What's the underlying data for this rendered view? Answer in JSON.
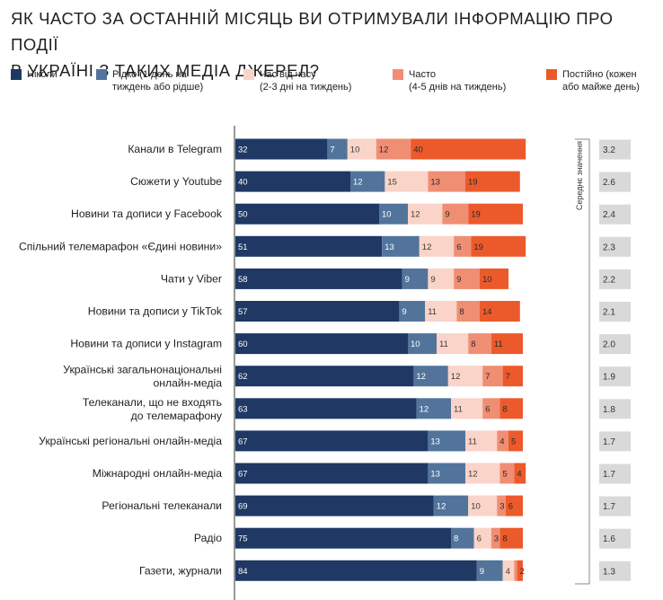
{
  "title": {
    "line1": "ЯК ЧАСТО ЗА ОСТАННІЙ МІСЯЦЬ ВИ ОТРИМУВАЛИ ІНФОРМАЦІЮ ПРО ПОДІЇ",
    "line2": "В УКРАЇНІ З ТАКИХ МЕДІА ДЖЕРЕЛ?"
  },
  "legend": [
    {
      "line1": "Ніколи",
      "line2": "",
      "color": "#1f3864"
    },
    {
      "line1": "Рідко (1 день на",
      "line2": "тиждень або рідше)",
      "color": "#52749b"
    },
    {
      "line1": "Час від часу",
      "line2": "(2-3 дні на тиждень)",
      "color": "#fad4c8"
    },
    {
      "line1": "Часто",
      "line2": "(4-5 днів на тиждень)",
      "color": "#f08e73"
    },
    {
      "line1": "Постійно (кожен",
      "line2": "або майже день)",
      "color": "#ec5a2b"
    }
  ],
  "chart_data": {
    "type": "bar",
    "orientation": "horizontal",
    "stacked": true,
    "title": "ЯК ЧАСТО ЗА ОСТАННІЙ МІСЯЦЬ ВИ ОТРИМУВАЛИ ІНФОРМАЦІЮ ПРО ПОДІЇ В УКРАЇНІ З ТАКИХ МЕДІА ДЖЕРЕЛ?",
    "xlim": [
      0,
      100
    ],
    "categories": [
      [
        "Канали в Telegram"
      ],
      [
        "Сюжети у Youtube"
      ],
      [
        "Новини та дописи у Facebook"
      ],
      [
        "Спільний телемарафон «Єдині новини»"
      ],
      [
        "Чати у Viber"
      ],
      [
        "Новини та дописи у TikTok"
      ],
      [
        "Новини та дописи у Instagram"
      ],
      [
        "Українські загальнонаціональні",
        "онлайн-медіа"
      ],
      [
        "Телеканали, що не входять",
        "до телемарафону"
      ],
      [
        "Українські регіональні онлайн-медіа"
      ],
      [
        "Міжнародні онлайн-медіа"
      ],
      [
        "Регіональні телеканали"
      ],
      [
        "Радіо"
      ],
      [
        "Газети, журнали"
      ]
    ],
    "series": [
      {
        "name": "Ніколи",
        "color": "#1f3864",
        "values": [
          32,
          40,
          50,
          51,
          58,
          57,
          60,
          62,
          63,
          67,
          67,
          69,
          75,
          84
        ]
      },
      {
        "name": "Рідко (1 день на тиждень або рідше)",
        "color": "#52749b",
        "values": [
          7,
          12,
          10,
          13,
          9,
          9,
          10,
          12,
          12,
          13,
          13,
          12,
          8,
          9
        ]
      },
      {
        "name": "Час від часу (2-3 дні на тиждень)",
        "color": "#fad4c8",
        "values": [
          10,
          15,
          12,
          12,
          9,
          11,
          11,
          12,
          11,
          11,
          12,
          10,
          6,
          4
        ]
      },
      {
        "name": "Часто (4-5 днів на тиждень)",
        "color": "#f08e73",
        "values": [
          12,
          13,
          9,
          6,
          9,
          8,
          8,
          7,
          6,
          4,
          5,
          3,
          3,
          1
        ]
      },
      {
        "name": "Постійно (кожен або майже день)",
        "color": "#ec5a2b",
        "values": [
          40,
          19,
          19,
          19,
          10,
          14,
          11,
          7,
          8,
          5,
          4,
          6,
          8,
          2
        ]
      }
    ],
    "mean_label": "Середнє значення",
    "mean_values": [
      "3.2",
      "2.6",
      "2.4",
      "2.3",
      "2.2",
      "2.1",
      "2.0",
      "1.9",
      "1.8",
      "1.7",
      "1.7",
      "1.7",
      "1.6",
      "1.3"
    ]
  }
}
